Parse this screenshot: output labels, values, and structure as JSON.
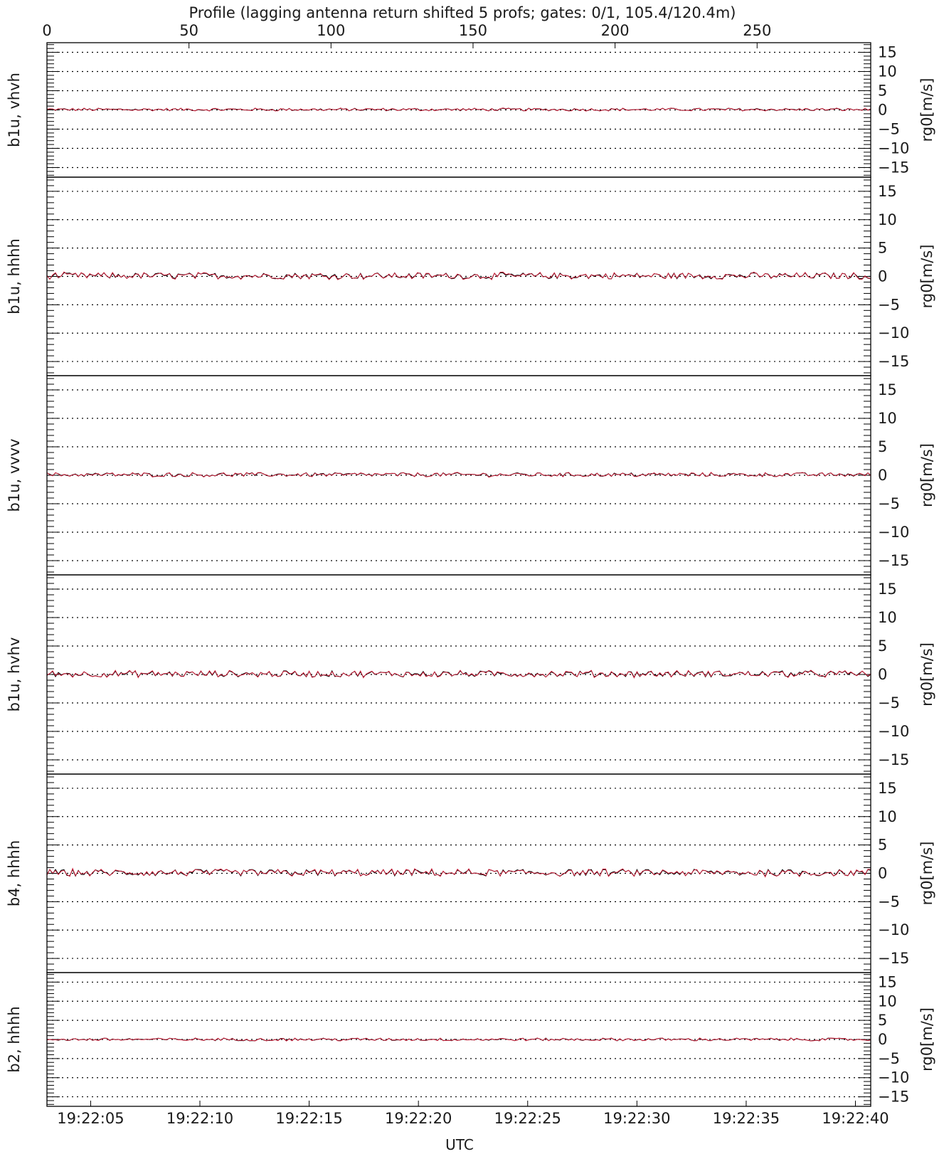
{
  "chart_data": {
    "type": "line",
    "title": "Profile (lagging antenna return shifted 5 profs; gates: 0/1, 105.4/120.4m)",
    "top_axis": {
      "min": 0,
      "max": 290,
      "tick_values": [
        0,
        50,
        100,
        150,
        200,
        250
      ],
      "tick_labels": [
        "0",
        "50",
        "100",
        "150",
        "200",
        "250"
      ]
    },
    "bottom_axis": {
      "label": "UTC",
      "time_start": "19:22:03",
      "time_end": "19:22:40.7",
      "tick_labels": [
        "19:22:05",
        "19:22:10",
        "19:22:15",
        "19:22:20",
        "19:22:25",
        "19:22:30",
        "19:22:35",
        "19:22:40"
      ]
    },
    "y_axis_label": "rg0[m/s]",
    "ylim": [
      -17.5,
      17.5
    ],
    "y_ticks": [
      15,
      10,
      5,
      0,
      -5,
      -10,
      -15
    ],
    "y_tick_labels": [
      "15",
      "10",
      "5",
      "0",
      "−5",
      "−10",
      "−15"
    ],
    "grid_style": "dotted horizontal at every 5 m/s",
    "colors": {
      "series_a": "#000000",
      "series_b": "#cc1f3a"
    },
    "panels": [
      {
        "label": "b1u, vhvh",
        "mean": 0.1,
        "noise": 0.35
      },
      {
        "label": "b1u, hhhh",
        "mean": 0.1,
        "noise": 0.55
      },
      {
        "label": "b1u, vvvv",
        "mean": 0.1,
        "noise": 0.35
      },
      {
        "label": "b1u, hvhv",
        "mean": 0.1,
        "noise": 0.55
      },
      {
        "label": "b4, hhhh",
        "mean": 0.1,
        "noise": 0.6
      },
      {
        "label": "b2, hhhh",
        "mean": 0.0,
        "noise": 0.35
      }
    ],
    "series": [
      {
        "values_description": "near-zero velocity noise, every panel"
      },
      {
        "values_description": "lagging antenna return, shifted 5 profiles"
      }
    ]
  }
}
